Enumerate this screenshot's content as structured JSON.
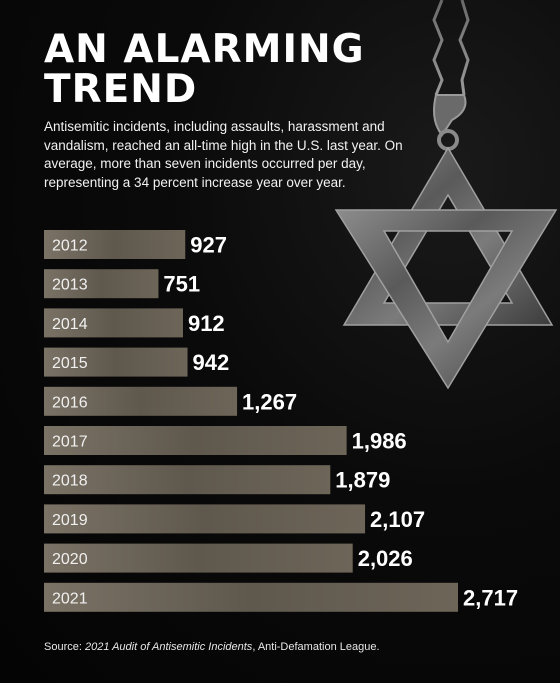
{
  "title_line1": "AN ALARMING",
  "title_line2": "TREND",
  "intro": "Antisemitic incidents, including assaults, harassment and vandalism, reached an all-time high in the U.S. last year. On average, more than seven incidents occurred per day, representing a 34 percent increase year over year.",
  "source": {
    "prefix": "Source: ",
    "italic": "2021 Audit of Antisemitic Incidents",
    "suffix": ", Anti-Defamation League."
  },
  "colors": {
    "background": "#050505",
    "bar": "#6e6659",
    "bar_dark": "#4a443b",
    "text": "#ffffff"
  },
  "icons": [
    "star-of-david-pendant-icon"
  ],
  "chart_data": {
    "type": "bar",
    "orientation": "horizontal",
    "categories": [
      "2012",
      "2013",
      "2014",
      "2015",
      "2016",
      "2017",
      "2018",
      "2019",
      "2020",
      "2021"
    ],
    "values": [
      927,
      751,
      912,
      942,
      1267,
      1986,
      1879,
      2107,
      2026,
      2717
    ],
    "value_labels": [
      "927",
      "751",
      "912",
      "942",
      "1,267",
      "1,986",
      "1,879",
      "2,107",
      "2,026",
      "2,717"
    ],
    "title": "",
    "xlabel": "",
    "ylabel": "",
    "xlim": [
      0,
      2717
    ],
    "grid": false,
    "legend": "none"
  }
}
